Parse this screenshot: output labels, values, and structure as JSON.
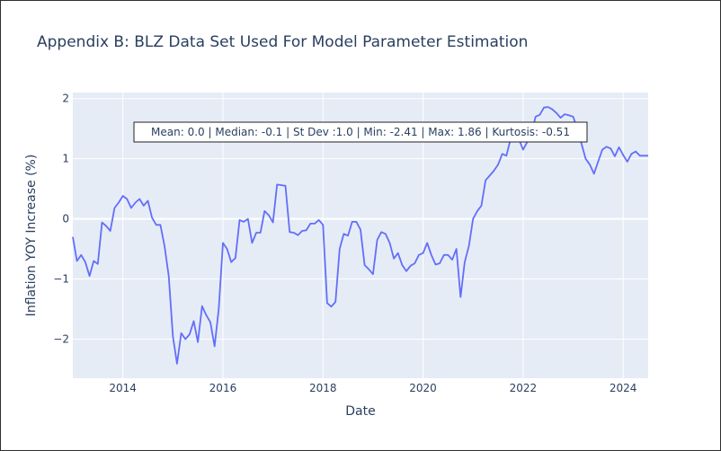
{
  "chart_data": {
    "type": "line",
    "title": "Appendix B: BLZ Data Set Used For Model Parameter Estimation",
    "xlabel": "Date",
    "ylabel": "Inflation YOY Increase (%)",
    "x_ticks": [
      "2014",
      "2016",
      "2018",
      "2020",
      "2022",
      "2024"
    ],
    "y_ticks": [
      "−2",
      "−1",
      "0",
      "1",
      "2"
    ],
    "xlim": [
      "2013-01",
      "2024-07"
    ],
    "ylim": [
      -2.65,
      2.1
    ],
    "grid": true,
    "line_color": "#636efa",
    "plot_bg": "#e5ecf6",
    "annotation": "Mean: 0.0 | Median: -0.1 | St Dev :1.0 | Min: -2.41 | Max: 1.86 | Kurtosis: -0.51",
    "series": [
      {
        "x": [
          "2013-01",
          "2013-02",
          "2013-03",
          "2013-04",
          "2013-05",
          "2013-06",
          "2013-07",
          "2013-08",
          "2013-09",
          "2013-10",
          "2013-11",
          "2013-12",
          "2014-01",
          "2014-02",
          "2014-03",
          "2014-04",
          "2014-05",
          "2014-06",
          "2014-07",
          "2014-08",
          "2014-09",
          "2014-10",
          "2014-11",
          "2014-12",
          "2015-01",
          "2015-02",
          "2015-03",
          "2015-04",
          "2015-05",
          "2015-06",
          "2015-07",
          "2015-08",
          "2015-09",
          "2015-10",
          "2015-11",
          "2015-12",
          "2016-01",
          "2016-02",
          "2016-03",
          "2016-04",
          "2016-05",
          "2016-06",
          "2016-07",
          "2016-08",
          "2016-09",
          "2016-10",
          "2016-11",
          "2016-12",
          "2017-01",
          "2017-02",
          "2017-03",
          "2017-04",
          "2017-05",
          "2017-06",
          "2017-07",
          "2017-08",
          "2017-09",
          "2017-10",
          "2017-11",
          "2017-12",
          "2018-01",
          "2018-02",
          "2018-03",
          "2018-04",
          "2018-05",
          "2018-06",
          "2018-07",
          "2018-08",
          "2018-09",
          "2018-10",
          "2018-11",
          "2018-12",
          "2019-01",
          "2019-02",
          "2019-03",
          "2019-04",
          "2019-05",
          "2019-06",
          "2019-07",
          "2019-08",
          "2019-09",
          "2019-10",
          "2019-11",
          "2019-12",
          "2020-01",
          "2020-02",
          "2020-03",
          "2020-04",
          "2020-05",
          "2020-06",
          "2020-07",
          "2020-08",
          "2020-09",
          "2020-10",
          "2020-11",
          "2020-12",
          "2021-01",
          "2021-02",
          "2021-03",
          "2021-04",
          "2021-05",
          "2021-06",
          "2021-07",
          "2021-08",
          "2021-09",
          "2021-10",
          "2021-11",
          "2021-12",
          "2022-01",
          "2022-02",
          "2022-03",
          "2022-04",
          "2022-05",
          "2022-06",
          "2022-07",
          "2022-08",
          "2022-09",
          "2022-10",
          "2022-11",
          "2022-12",
          "2023-01",
          "2023-02",
          "2023-03",
          "2023-04",
          "2023-05",
          "2023-06",
          "2023-07",
          "2023-08",
          "2023-09",
          "2023-10",
          "2023-11",
          "2023-12",
          "2024-01",
          "2024-02",
          "2024-03",
          "2024-04",
          "2024-05",
          "2024-06",
          "2024-07"
        ],
        "y": [
          -0.3,
          -0.7,
          -0.6,
          -0.72,
          -0.95,
          -0.7,
          -0.75,
          -0.06,
          -0.12,
          -0.2,
          0.18,
          0.27,
          0.38,
          0.33,
          0.18,
          0.27,
          0.33,
          0.22,
          0.3,
          0.02,
          -0.1,
          -0.1,
          -0.45,
          -0.95,
          -1.95,
          -2.41,
          -1.9,
          -2.0,
          -1.92,
          -1.7,
          -2.05,
          -1.45,
          -1.6,
          -1.72,
          -2.12,
          -1.5,
          -0.4,
          -0.5,
          -0.72,
          -0.65,
          -0.02,
          -0.05,
          0.0,
          -0.4,
          -0.23,
          -0.23,
          0.13,
          0.06,
          -0.06,
          0.57,
          0.56,
          0.55,
          -0.22,
          -0.23,
          -0.27,
          -0.2,
          -0.19,
          -0.08,
          -0.08,
          -0.02,
          -0.1,
          -1.4,
          -1.46,
          -1.38,
          -0.5,
          -0.25,
          -0.28,
          -0.05,
          -0.05,
          -0.18,
          -0.77,
          -0.84,
          -0.92,
          -0.35,
          -0.22,
          -0.25,
          -0.4,
          -0.66,
          -0.57,
          -0.77,
          -0.87,
          -0.78,
          -0.74,
          -0.6,
          -0.57,
          -0.4,
          -0.6,
          -0.76,
          -0.74,
          -0.6,
          -0.6,
          -0.68,
          -0.5,
          -1.3,
          -0.72,
          -0.45,
          0.0,
          0.13,
          0.22,
          0.64,
          0.72,
          0.8,
          0.9,
          1.08,
          1.05,
          1.33,
          1.3,
          1.32,
          1.15,
          1.28,
          1.42,
          1.7,
          1.73,
          1.85,
          1.86,
          1.82,
          1.76,
          1.68,
          1.74,
          1.72,
          1.7,
          1.5,
          1.25,
          1.0,
          0.9,
          0.75,
          0.95,
          1.15,
          1.2,
          1.17,
          1.04,
          1.19,
          1.06,
          0.95,
          1.08,
          1.12,
          1.05,
          1.05,
          1.05
        ]
      }
    ]
  }
}
